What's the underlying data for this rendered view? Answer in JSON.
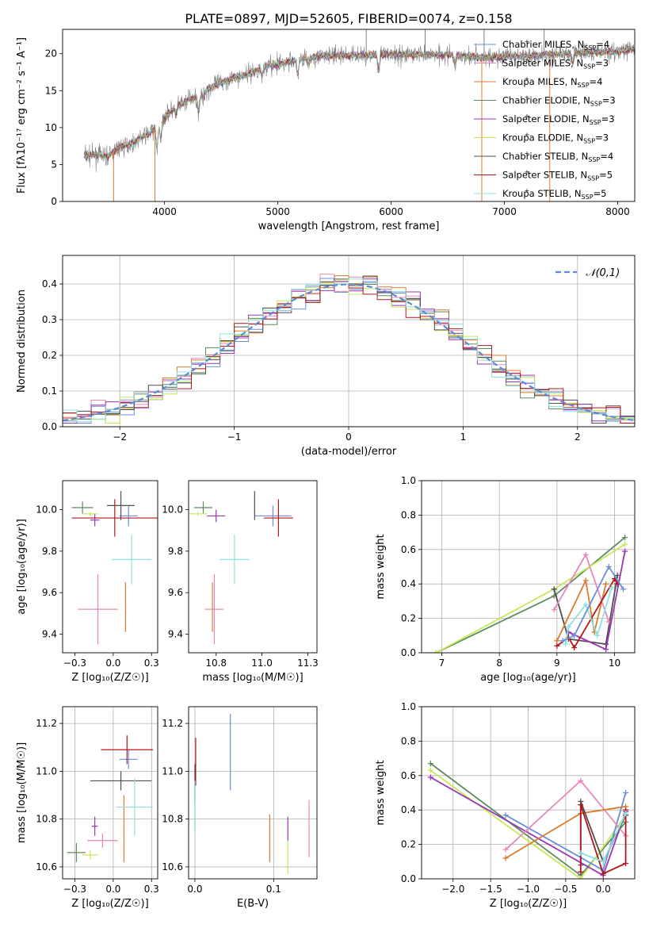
{
  "figure": {
    "title": "PLATE=0897, MJD=52605, FIBERID=0074, z=0.158"
  },
  "models": [
    {
      "key": "CM",
      "label": "Chabrier MILES, N_SSP=4",
      "base": "Chabrier MILES, N",
      "sub": "SSP",
      "tail": "=4",
      "color": "#6a8fd8"
    },
    {
      "key": "SM",
      "label": "Salpeter MILES, N_SSP=3",
      "base": "Salpeter MILES, N",
      "sub": "SSP",
      "tail": "=3",
      "color": "#e888bc"
    },
    {
      "key": "KM",
      "label": "Kroupa MILES, N_SSP=4",
      "base": "Kroupa MILES, N",
      "sub": "SSP",
      "tail": "=4",
      "color": "#dd7a2c"
    },
    {
      "key": "CE",
      "label": "Chabrier ELODIE, N_SSP=3",
      "base": "Chabrier ELODIE, N",
      "sub": "SSP",
      "tail": "=3",
      "color": "#5e8a5e"
    },
    {
      "key": "SE",
      "label": "Salpeter ELODIE, N_SSP=3",
      "base": "Salpeter ELODIE, N",
      "sub": "SSP",
      "tail": "=3",
      "color": "#9b35b5"
    },
    {
      "key": "KE",
      "label": "Kroupa ELODIE, N_SSP=3",
      "base": "Kroupa ELODIE, N",
      "sub": "SSP",
      "tail": "=3",
      "color": "#c6e85a"
    },
    {
      "key": "CS",
      "label": "Chabrier STELIB, N_SSP=4",
      "base": "Chabrier STELIB, N",
      "sub": "SSP",
      "tail": "=4",
      "color": "#4f4f4f"
    },
    {
      "key": "SS",
      "label": "Salpeter STELIB, N_SSP=5",
      "base": "Salpeter STELIB, N",
      "sub": "SSP",
      "tail": "=5",
      "color": "#b0181c"
    },
    {
      "key": "KS",
      "label": "Kroupa STELIB, N_SSP=5",
      "base": "Kroupa STELIB, N",
      "sub": "SSP",
      "tail": "=5",
      "color": "#8fe0e0"
    }
  ],
  "chart_data": [
    {
      "id": "spectrum",
      "type": "line",
      "xlabel": "wavelength [Angstrom, rest frame]",
      "ylabel": "Flux [fλ10⁻¹⁷ erg cm⁻² s⁻¹ A⁻¹]",
      "xlim": [
        3100,
        8150
      ],
      "ylim": [
        0,
        23.3
      ],
      "xticks": [
        4000,
        5000,
        6000,
        7000,
        8000
      ],
      "yticks": [
        0,
        5,
        10,
        15,
        20
      ],
      "legend": "right",
      "continuum": {
        "x": [
          3290,
          3400,
          3500,
          3600,
          3700,
          3800,
          3900,
          4000,
          4100,
          4200,
          4300,
          4400,
          4500,
          4600,
          4700,
          4800,
          4900,
          5000,
          5200,
          5400,
          5600,
          5800,
          6000,
          6200,
          6400,
          6600,
          6800,
          7000,
          7200,
          7400,
          7600,
          7800,
          8000,
          8150
        ],
        "y": [
          6.2,
          6.3,
          6.1,
          7.3,
          7.8,
          8.7,
          9.6,
          11.5,
          12.8,
          13.6,
          14.3,
          15.4,
          16.1,
          16.7,
          17.1,
          17.6,
          18.4,
          18.5,
          19.3,
          19.7,
          19.8,
          19.8,
          19.9,
          19.9,
          19.9,
          19.8,
          19.5,
          19.6,
          19.7,
          20.0,
          20.0,
          20.2,
          20.3,
          20.7
        ]
      },
      "features": [
        {
          "x": 3933,
          "depth": 3.0
        },
        {
          "x": 3968,
          "depth": 2.5
        },
        {
          "x": 4101,
          "depth": 1.2
        },
        {
          "x": 4300,
          "depth": 2.2
        },
        {
          "x": 4340,
          "depth": 1.0
        },
        {
          "x": 4861,
          "depth": 1.0
        },
        {
          "x": 5175,
          "depth": 2.0
        },
        {
          "x": 5270,
          "depth": 1.0
        },
        {
          "x": 5890,
          "depth": 2.4
        },
        {
          "x": 6563,
          "depth": 1.5
        },
        {
          "x": 7600,
          "depth": 1.2
        }
      ],
      "spikes": [
        {
          "x": 3550,
          "y": 0
        },
        {
          "x": 3915,
          "y": 0
        },
        {
          "x": 6800,
          "y": 0
        },
        {
          "x": 7400,
          "y": 0
        },
        {
          "x": 5780,
          "y": 23.3
        },
        {
          "x": 6300,
          "y": 23.3
        },
        {
          "x": 6820,
          "y": 23.3
        },
        {
          "x": 7350,
          "y": 23.3
        }
      ]
    },
    {
      "id": "residual-histogram",
      "type": "bar",
      "xlabel": "(data-model)/error",
      "ylabel": "Normed distribution",
      "xlim": [
        -2.5,
        2.5
      ],
      "ylim": [
        0,
        0.48
      ],
      "xticks": [
        -2,
        -1,
        0,
        1,
        2
      ],
      "yticks": [
        0.0,
        0.1,
        0.2,
        0.3,
        0.4
      ],
      "grid": true,
      "bin_width": 0.125,
      "reference_curve": {
        "label": "𝒩(0,1)",
        "mean": 0,
        "sigma": 1,
        "color": "#5b8bd6",
        "style": "dashed"
      },
      "legend": "top-right"
    },
    {
      "id": "age-vs-Z",
      "type": "scatter",
      "xlabel": "Z [log₁₀(Z/Z☉)]",
      "ylabel": "age  [log₁₀(age/yr)]",
      "xlim": [
        -0.33,
        0.29
      ],
      "ylim": [
        9.31,
        10.14
      ],
      "xticks": [
        -0.25,
        0.0,
        0.25
      ],
      "yticks": [
        9.4,
        9.6,
        9.8,
        10.0
      ],
      "points": {
        "CM": {
          "x": 0.1,
          "xerr": 0.06,
          "y": 9.97,
          "yerr": 0.05
        },
        "SM": {
          "x": -0.1,
          "xerr": 0.13,
          "y": 9.52,
          "yerr": 0.17
        },
        "KM": {
          "x": 0.08,
          "xerr": 0.0,
          "y": 9.53,
          "yerr": 0.12
        },
        "CE": {
          "x": -0.2,
          "xerr": 0.07,
          "y": 10.01,
          "yerr": 0.03
        },
        "SE": {
          "x": -0.12,
          "xerr": 0.03,
          "y": 9.95,
          "yerr": 0.03
        },
        "KE": {
          "x": -0.15,
          "xerr": 0.05,
          "y": 9.98,
          "yerr": 0.01
        },
        "CS": {
          "x": 0.05,
          "xerr": 0.09,
          "y": 10.02,
          "yerr": 0.07
        },
        "SS": {
          "x": 0.01,
          "xerr": 0.28,
          "y": 9.96,
          "yerr": 0.09
        },
        "KS": {
          "x": 0.12,
          "xerr": 0.13,
          "y": 9.76,
          "yerr": 0.12
        }
      }
    },
    {
      "id": "age-vs-mass",
      "type": "scatter",
      "xlabel": "mass [log₁₀(M/M☉)]",
      "ylabel": "",
      "xlim": [
        10.6,
        11.3
      ],
      "ylim": [
        9.31,
        10.14
      ],
      "xticks": [
        10.75,
        11.0,
        11.25
      ],
      "yticks": [
        9.4,
        9.6,
        9.8,
        10.0
      ],
      "points": {
        "CM": {
          "x": 11.06,
          "xerr": 0.1,
          "y": 9.97,
          "yerr": 0.05
        },
        "SM": {
          "x": 10.74,
          "xerr": 0.05,
          "y": 9.52,
          "yerr": 0.17
        },
        "KM": {
          "x": 10.73,
          "xerr": 0.0,
          "y": 9.53,
          "yerr": 0.12
        },
        "CE": {
          "x": 10.68,
          "xerr": 0.05,
          "y": 10.01,
          "yerr": 0.03
        },
        "SE": {
          "x": 10.75,
          "xerr": 0.05,
          "y": 9.97,
          "yerr": 0.03
        },
        "KE": {
          "x": 10.65,
          "xerr": 0.05,
          "y": 9.98,
          "yerr": 0.01
        },
        "CS": {
          "x": 10.96,
          "xerr": 0.0,
          "y": 10.02,
          "yerr": 0.07
        },
        "SS": {
          "x": 11.09,
          "xerr": 0.08,
          "y": 9.96,
          "yerr": 0.09
        },
        "KS": {
          "x": 10.85,
          "xerr": 0.08,
          "y": 9.76,
          "yerr": 0.12
        }
      }
    },
    {
      "id": "mass-weight-vs-age",
      "type": "line",
      "xlabel": "age  [log₁₀(age/yr)]",
      "ylabel": "mass weight",
      "xlim": [
        6.65,
        10.35
      ],
      "ylim": [
        0.0,
        1.0
      ],
      "xticks": [
        7,
        8,
        9,
        10
      ],
      "yticks": [
        0.0,
        0.2,
        0.4,
        0.6,
        0.8,
        1.0
      ],
      "grid": true,
      "series": [
        {
          "model": "CE",
          "x": [
            6.9,
            8.95,
            10.18
          ],
          "y": [
            0.0,
            0.33,
            0.67
          ]
        },
        {
          "model": "KE",
          "x": [
            6.9,
            8.95,
            10.18
          ],
          "y": [
            0.0,
            0.37,
            0.63
          ]
        },
        {
          "model": "CS",
          "x": [
            8.95,
            9.2,
            9.85,
            10.05
          ],
          "y": [
            0.37,
            0.08,
            0.05,
            0.45
          ]
        },
        {
          "model": "SM",
          "x": [
            8.95,
            9.5,
            9.9
          ],
          "y": [
            0.25,
            0.57,
            0.18
          ]
        },
        {
          "model": "KM",
          "x": [
            9.0,
            9.5,
            9.65,
            9.85
          ],
          "y": [
            0.07,
            0.42,
            0.12,
            0.4
          ]
        },
        {
          "model": "SE",
          "x": [
            9.2,
            9.85,
            10.18
          ],
          "y": [
            0.12,
            0.02,
            0.59
          ]
        },
        {
          "model": "SS",
          "x": [
            9.0,
            9.2,
            9.3,
            10.0,
            10.05
          ],
          "y": [
            0.04,
            0.09,
            0.03,
            0.43,
            0.4
          ]
        },
        {
          "model": "KS",
          "x": [
            9.15,
            9.2,
            9.5,
            9.7,
            9.95
          ],
          "y": [
            0.05,
            0.15,
            0.28,
            0.1,
            0.38
          ]
        },
        {
          "model": "CM",
          "x": [
            9.1,
            9.3,
            9.9,
            10.15
          ],
          "y": [
            0.07,
            0.1,
            0.5,
            0.37
          ]
        }
      ]
    },
    {
      "id": "mass-vs-Z",
      "type": "scatter",
      "xlabel": "Z [log₁₀(Z/Z☉)]",
      "ylabel": "mass [log₁₀(M/M☉)]",
      "xlim": [
        -0.33,
        0.29
      ],
      "ylim": [
        10.55,
        11.27
      ],
      "xticks": [
        -0.25,
        0.0,
        0.25
      ],
      "yticks": [
        10.6,
        10.8,
        11.0,
        11.2
      ],
      "points": {
        "CM": {
          "x": 0.1,
          "xerr": 0.06,
          "y": 11.05,
          "yerr": 0.04
        },
        "SM": {
          "x": -0.07,
          "xerr": 0.1,
          "y": 10.71,
          "yerr": 0.03
        },
        "KM": {
          "x": 0.07,
          "xerr": 0.0,
          "y": 10.76,
          "yerr": 0.14
        },
        "CE": {
          "x": -0.24,
          "xerr": 0.06,
          "y": 10.66,
          "yerr": 0.04
        },
        "SE": {
          "x": -0.12,
          "xerr": 0.02,
          "y": 10.77,
          "yerr": 0.04
        },
        "KE": {
          "x": -0.15,
          "xerr": 0.05,
          "y": 10.65,
          "yerr": 0.02
        },
        "CS": {
          "x": 0.05,
          "xerr": 0.2,
          "y": 10.96,
          "yerr": 0.04
        },
        "SS": {
          "x": 0.09,
          "xerr": 0.17,
          "y": 11.09,
          "yerr": 0.06
        },
        "KS": {
          "x": 0.14,
          "xerr": 0.12,
          "y": 10.85,
          "yerr": 0.12
        }
      }
    },
    {
      "id": "mass-vs-EBV",
      "type": "scatter",
      "xlabel": "E(B-V)",
      "ylabel": "",
      "xlim": [
        -0.008,
        0.155
      ],
      "ylim": [
        10.55,
        11.27
      ],
      "xticks": [
        0.0,
        0.1
      ],
      "yticks": [
        10.6,
        10.8,
        11.0,
        11.2
      ],
      "points": {
        "CM": {
          "x": 0.045,
          "y": 11.08,
          "yerr": 0.16
        },
        "SM": {
          "x": 0.145,
          "y": 10.76,
          "yerr": 0.12
        },
        "KM": {
          "x": 0.095,
          "y": 10.72,
          "yerr": 0.1
        },
        "CE": {
          "x": 0.0,
          "y": 10.85,
          "yerr": 0.1
        },
        "SE": {
          "x": 0.118,
          "y": 10.76,
          "yerr": 0.05
        },
        "KE": {
          "x": 0.118,
          "y": 10.64,
          "yerr": 0.07
        },
        "CS": {
          "x": 0.0,
          "y": 10.95,
          "yerr": 0.08
        },
        "SS": {
          "x": 0.001,
          "y": 11.04,
          "yerr": 0.1
        },
        "KS": {
          "x": 0.0,
          "y": 10.85,
          "yerr": 0.11
        }
      }
    },
    {
      "id": "mass-weight-vs-Z",
      "type": "line",
      "xlabel": "Z [log₁₀(Z/Z☉)]",
      "ylabel": "mass weight",
      "xlim": [
        -2.42,
        0.42
      ],
      "ylim": [
        0.0,
        1.0
      ],
      "xticks": [
        -2.0,
        -1.5,
        -1.0,
        -0.5,
        0.0
      ],
      "yticks": [
        0.0,
        0.2,
        0.4,
        0.6,
        0.8,
        1.0
      ],
      "grid": true,
      "series": [
        {
          "model": "CE",
          "x": [
            -2.3,
            -0.3,
            0.3
          ],
          "y": [
            0.67,
            0.02,
            0.33
          ]
        },
        {
          "model": "KE",
          "x": [
            -2.3,
            -0.3,
            0.3
          ],
          "y": [
            0.63,
            0.0,
            0.37
          ]
        },
        {
          "model": "SE",
          "x": [
            -2.3,
            0.0,
            0.3
          ],
          "y": [
            0.59,
            0.02,
            0.39
          ]
        },
        {
          "model": "CM",
          "x": [
            -1.3,
            0.0,
            0.3
          ],
          "y": [
            0.37,
            0.05,
            0.5
          ]
        },
        {
          "model": "SM",
          "x": [
            -1.3,
            -0.3,
            0.3
          ],
          "y": [
            0.17,
            0.57,
            0.25
          ]
        },
        {
          "model": "KM",
          "x": [
            -1.3,
            -0.3,
            0.3
          ],
          "y": [
            0.12,
            0.38,
            0.42
          ]
        },
        {
          "model": "CS",
          "x": [
            -0.3,
            -0.3,
            0.0,
            0.3
          ],
          "y": [
            0.08,
            0.45,
            0.1,
            0.37
          ]
        },
        {
          "model": "SS",
          "x": [
            -0.3,
            -0.3,
            0.0,
            0.3,
            0.3
          ],
          "y": [
            0.04,
            0.43,
            0.03,
            0.09,
            0.4
          ]
        },
        {
          "model": "KS",
          "x": [
            -0.3,
            0.0,
            0.3
          ],
          "y": [
            0.15,
            0.1,
            0.38
          ]
        }
      ]
    }
  ]
}
